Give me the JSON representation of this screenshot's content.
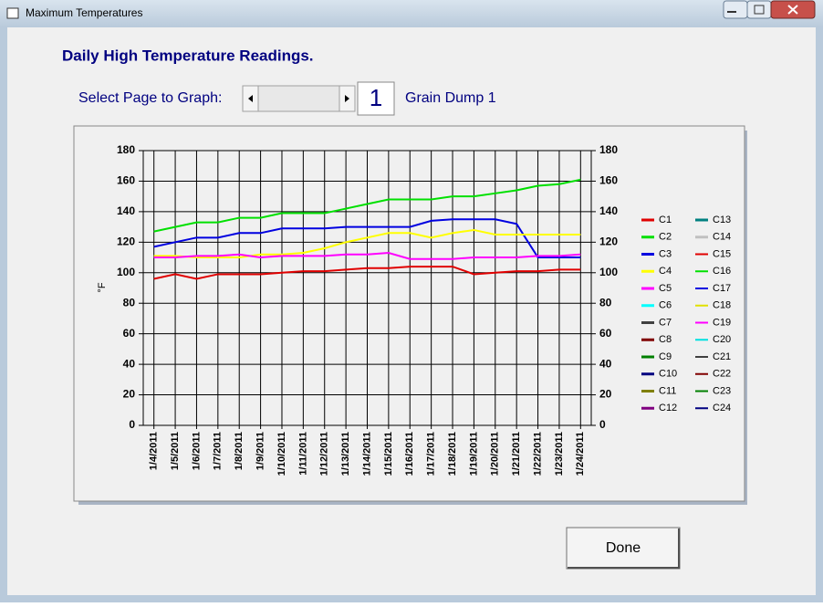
{
  "window": {
    "title": "Maximum Temperatures"
  },
  "heading": "Daily High Temperature Readings.",
  "page_selector": {
    "label": "Select Page to Graph:",
    "page": "1",
    "page_name": "Grain Dump 1"
  },
  "button": "Done",
  "chart_data": {
    "type": "line",
    "ylabel": "°F",
    "categories": [
      "1/4/2011",
      "1/5/2011",
      "1/6/2011",
      "1/7/2011",
      "1/8/2011",
      "1/9/2011",
      "1/10/2011",
      "1/11/2011",
      "1/12/2011",
      "1/13/2011",
      "1/14/2011",
      "1/15/2011",
      "1/16/2011",
      "1/17/2011",
      "1/18/2011",
      "1/19/2011",
      "1/20/2011",
      "1/21/2011",
      "1/22/2011",
      "1/23/2011",
      "1/24/2011"
    ],
    "ylim": [
      0,
      180
    ],
    "yticks": [
      0,
      20,
      40,
      60,
      80,
      100,
      120,
      140,
      160,
      180
    ],
    "y2lim": [
      0,
      180
    ],
    "y2ticks": [
      0,
      20,
      40,
      60,
      80,
      100,
      120,
      140,
      160,
      180
    ],
    "grid": true,
    "legend": "right",
    "series": [
      {
        "name": "C1",
        "color": "#e00000",
        "width": 2,
        "values": [
          96,
          99,
          96,
          99,
          99,
          99,
          100,
          101,
          101,
          102,
          103,
          103,
          104,
          104,
          104,
          99,
          100,
          101,
          101,
          102,
          102
        ]
      },
      {
        "name": "C2",
        "color": "#00e000",
        "width": 2,
        "values": [
          127,
          130,
          133,
          133,
          136,
          136,
          139,
          139,
          139,
          142,
          145,
          148,
          148,
          148,
          150,
          150,
          152,
          154,
          157,
          158,
          161
        ]
      },
      {
        "name": "C3",
        "color": "#0000e0",
        "width": 2,
        "values": [
          117,
          120,
          123,
          123,
          126,
          126,
          129,
          129,
          129,
          130,
          130,
          130,
          130,
          134,
          135,
          135,
          135,
          132,
          110,
          110,
          110
        ]
      },
      {
        "name": "C4",
        "color": "#ffff00",
        "width": 2,
        "values": [
          111,
          111,
          110,
          110,
          110,
          112,
          112,
          113,
          116,
          120,
          123,
          126,
          126,
          123,
          126,
          128,
          125,
          125,
          125,
          125,
          125
        ]
      },
      {
        "name": "C5",
        "color": "#ff00ff",
        "width": 2,
        "values": [
          110,
          110,
          111,
          111,
          112,
          110,
          111,
          111,
          111,
          112,
          112,
          113,
          109,
          109,
          109,
          110,
          110,
          110,
          111,
          111,
          112
        ]
      },
      {
        "name": "C6",
        "color": "#00ffff",
        "width": 2
      },
      {
        "name": "C7",
        "color": "#404040",
        "width": 2
      },
      {
        "name": "C8",
        "color": "#800000",
        "width": 2
      },
      {
        "name": "C9",
        "color": "#008000",
        "width": 2
      },
      {
        "name": "C10",
        "color": "#000080",
        "width": 2
      },
      {
        "name": "C11",
        "color": "#808000",
        "width": 2
      },
      {
        "name": "C12",
        "color": "#800080",
        "width": 2
      },
      {
        "name": "C13",
        "color": "#008080",
        "width": 2
      },
      {
        "name": "C14",
        "color": "#c0c0c0",
        "width": 2
      },
      {
        "name": "C15",
        "color": "#e00000",
        "width": 1
      },
      {
        "name": "C16",
        "color": "#00e000",
        "width": 1
      },
      {
        "name": "C17",
        "color": "#0000e0",
        "width": 1
      },
      {
        "name": "C18",
        "color": "#e0e000",
        "width": 1
      },
      {
        "name": "C19",
        "color": "#ff00ff",
        "width": 1
      },
      {
        "name": "C20",
        "color": "#00e0e0",
        "width": 1
      },
      {
        "name": "C21",
        "color": "#404040",
        "width": 1
      },
      {
        "name": "C22",
        "color": "#800000",
        "width": 1
      },
      {
        "name": "C23",
        "color": "#008000",
        "width": 1
      },
      {
        "name": "C24",
        "color": "#000080",
        "width": 1
      }
    ]
  }
}
